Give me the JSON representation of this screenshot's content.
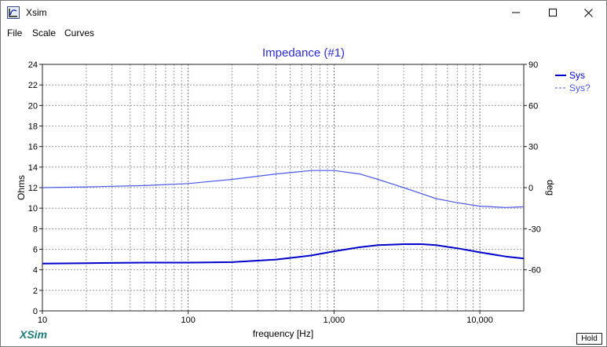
{
  "window": {
    "title": "Xsim",
    "controls": [
      "minimize",
      "maximize",
      "close"
    ]
  },
  "menu": {
    "items": [
      "File",
      "Scale",
      "Curves"
    ]
  },
  "footer": {
    "brand": "XSim",
    "hold_label": "Hold"
  },
  "chart_data": {
    "type": "line",
    "title": "Impedance (#1)",
    "xlabel": "frequency [Hz]",
    "ylabel": "Ohms",
    "y2label": "deg",
    "xscale": "log",
    "xlim": [
      10,
      20000
    ],
    "ylim": [
      0,
      24
    ],
    "y2lim": [
      -90,
      90
    ],
    "xticks": [
      10,
      100,
      1000,
      10000
    ],
    "xtick_labels": [
      "10",
      "100",
      "1,000",
      "10,000"
    ],
    "yticks": [
      0,
      2,
      4,
      6,
      8,
      10,
      12,
      14,
      16,
      18,
      20,
      22,
      24
    ],
    "y2ticks": [
      -60,
      -30,
      0,
      30,
      60,
      90
    ],
    "grid": true,
    "legend_position": "top-right",
    "series": [
      {
        "name": "Sys",
        "axis": "left",
        "color": "#0000cc",
        "style": "solid-bold",
        "x": [
          10,
          20,
          50,
          100,
          200,
          400,
          700,
          1000,
          1500,
          2000,
          3000,
          4000,
          5000,
          7000,
          10000,
          15000,
          20000
        ],
        "y": [
          4.6,
          4.65,
          4.7,
          4.7,
          4.75,
          5.0,
          5.4,
          5.8,
          6.2,
          6.4,
          6.5,
          6.5,
          6.4,
          6.1,
          5.7,
          5.3,
          5.1
        ]
      },
      {
        "name": "Sys?",
        "axis": "right",
        "color": "#4a5ae8",
        "style": "solid-thin",
        "x": [
          10,
          20,
          50,
          100,
          200,
          400,
          700,
          1000,
          1500,
          2000,
          3000,
          4000,
          5000,
          7000,
          10000,
          15000,
          20000
        ],
        "y": [
          0,
          0.5,
          1.5,
          3,
          6,
          10,
          12.5,
          12.5,
          10,
          6,
          0,
          -4.5,
          -8,
          -11,
          -13.5,
          -14.5,
          -14
        ]
      }
    ]
  }
}
